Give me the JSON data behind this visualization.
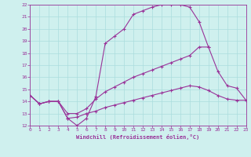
{
  "xlabel": "Windchill (Refroidissement éolien,°C)",
  "bg_color": "#cff0ee",
  "line_color": "#993399",
  "grid_color": "#aadddd",
  "xlim": [
    0,
    23
  ],
  "ylim": [
    12,
    22
  ],
  "xticks": [
    0,
    1,
    2,
    3,
    4,
    5,
    6,
    7,
    8,
    9,
    10,
    11,
    12,
    13,
    14,
    15,
    16,
    17,
    18,
    19,
    20,
    21,
    22,
    23
  ],
  "yticks": [
    12,
    13,
    14,
    15,
    16,
    17,
    18,
    19,
    20,
    21,
    22
  ],
  "line1_x": [
    0,
    1,
    2,
    3,
    4,
    5,
    6,
    7,
    8,
    9,
    10,
    11,
    12,
    13,
    14,
    15,
    16,
    17,
    18,
    19
  ],
  "line1_y": [
    14.5,
    13.8,
    14.0,
    14.0,
    12.6,
    12.0,
    12.6,
    14.4,
    18.8,
    19.4,
    20.0,
    21.2,
    21.5,
    21.8,
    22.0,
    22.0,
    22.0,
    21.8,
    20.6,
    18.5
  ],
  "line2_x": [
    0,
    1,
    2,
    3,
    4,
    5,
    6,
    7,
    8,
    9,
    10,
    11,
    12,
    13,
    14,
    15,
    16,
    17,
    18,
    19,
    20,
    21,
    22,
    23
  ],
  "line2_y": [
    14.5,
    13.8,
    14.0,
    14.0,
    13.0,
    13.0,
    13.4,
    14.2,
    14.8,
    15.2,
    15.6,
    16.0,
    16.3,
    16.6,
    16.9,
    17.2,
    17.5,
    17.8,
    18.5,
    18.5,
    16.5,
    15.3,
    15.1,
    14.1
  ],
  "line3_x": [
    0,
    1,
    2,
    3,
    4,
    5,
    6,
    7,
    8,
    9,
    10,
    11,
    12,
    13,
    14,
    15,
    16,
    17,
    18,
    19,
    20,
    21,
    22,
    23
  ],
  "line3_y": [
    14.5,
    13.8,
    14.0,
    14.0,
    12.6,
    12.7,
    13.0,
    13.2,
    13.5,
    13.7,
    13.9,
    14.1,
    14.3,
    14.5,
    14.7,
    14.9,
    15.1,
    15.3,
    15.2,
    14.9,
    14.5,
    14.2,
    14.1,
    14.1
  ]
}
